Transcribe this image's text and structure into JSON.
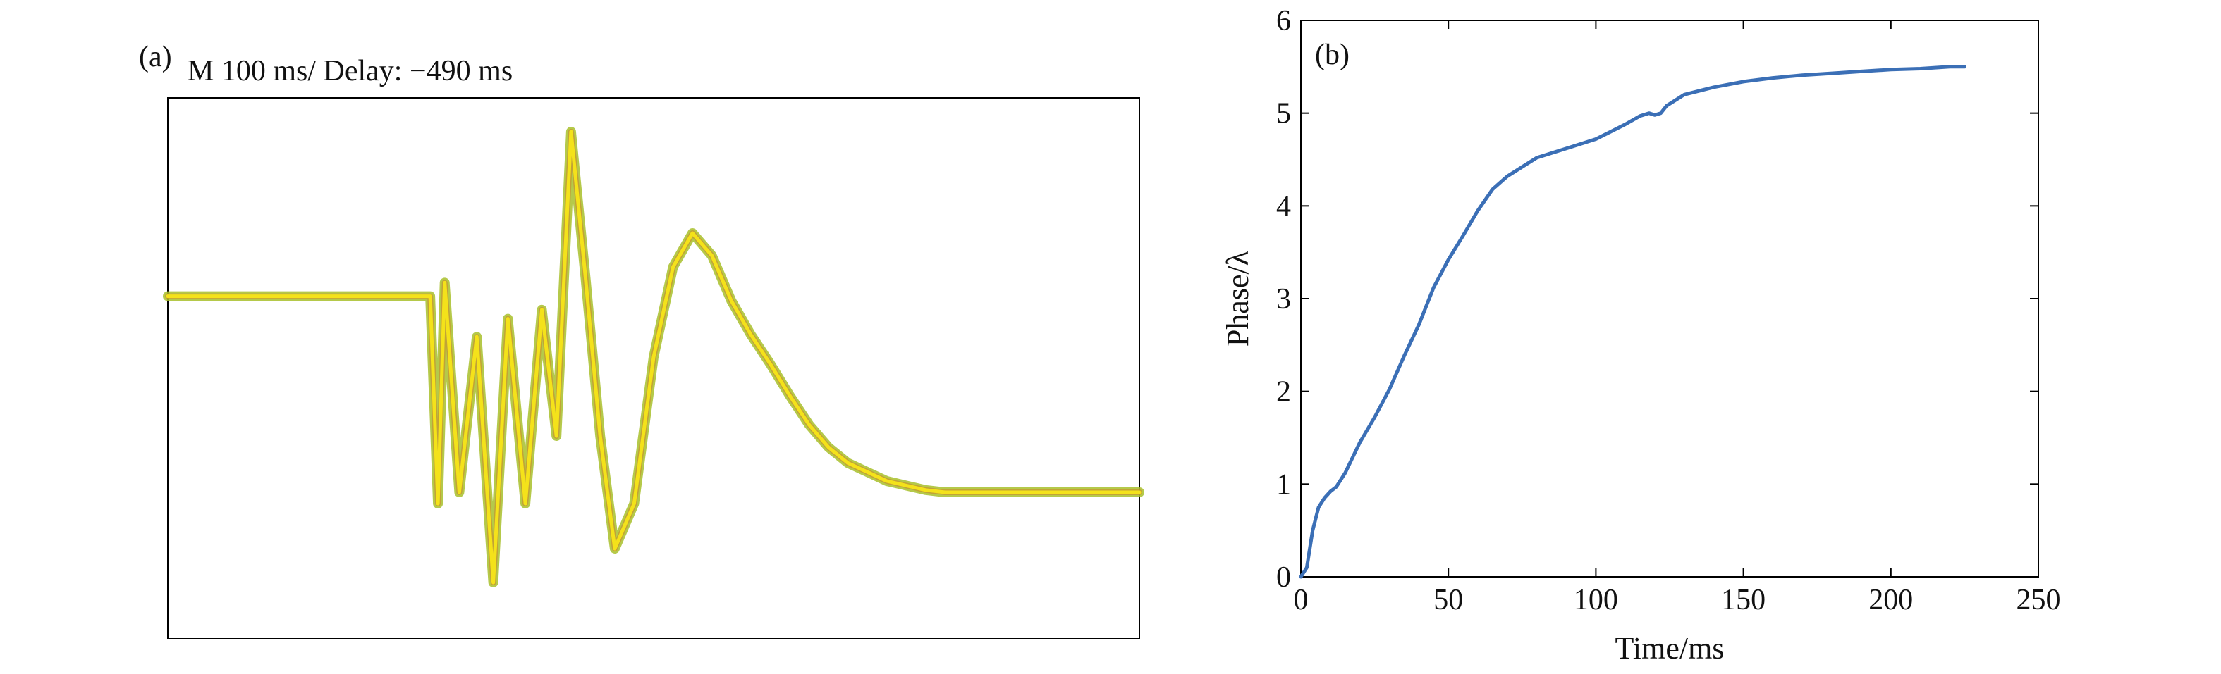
{
  "chart_data": [
    {
      "panel_label": "(a)",
      "type": "line",
      "title": "M 100 ms/ Delay: −490 ms",
      "xlabel": "",
      "ylabel": "",
      "grid": false,
      "axes_visible": false,
      "xlim": [
        0,
        1000
      ],
      "ylim": [
        -1.2,
        1.2
      ],
      "colors": {
        "trace_core": "#f4e21a",
        "trace_halo": "#a8bf2a",
        "trace_shadow": "#c98a2a",
        "frame": "#000000"
      },
      "series": [
        {
          "x": [
            0,
            60,
            120,
            180,
            240,
            270,
            278,
            285,
            300,
            318,
            335,
            350,
            368,
            385,
            400,
            415,
            430,
            445,
            460,
            480,
            500,
            520,
            540,
            560,
            580,
            600,
            620,
            640,
            660,
            680,
            700,
            720,
            740,
            760,
            780,
            800,
            850,
            900,
            950,
            1000
          ],
          "y": [
            0.32,
            0.32,
            0.32,
            0.32,
            0.32,
            0.32,
            -0.6,
            0.38,
            -0.55,
            0.14,
            -0.95,
            0.22,
            -0.6,
            0.26,
            -0.3,
            1.05,
            0.4,
            -0.3,
            -0.8,
            -0.6,
            0.05,
            0.45,
            0.6,
            0.5,
            0.3,
            0.15,
            0.02,
            -0.12,
            -0.25,
            -0.35,
            -0.42,
            -0.46,
            -0.5,
            -0.52,
            -0.54,
            -0.55,
            -0.55,
            -0.55,
            -0.55,
            -0.55
          ]
        }
      ]
    },
    {
      "panel_label": "(b)",
      "type": "line",
      "title": "",
      "xlabel": "Time/ms",
      "ylabel": "Phase/λ",
      "grid": false,
      "xlim": [
        0,
        250
      ],
      "ylim": [
        0,
        6
      ],
      "xticks": [
        "0",
        "50",
        "100",
        "150",
        "200",
        "250"
      ],
      "yticks": [
        "0",
        "1",
        "2",
        "3",
        "4",
        "5",
        "6"
      ],
      "colors": {
        "line": "#3b6fb6",
        "axes": "#000000"
      },
      "series": [
        {
          "x": [
            0,
            2,
            4,
            6,
            8,
            10,
            12,
            15,
            20,
            25,
            30,
            35,
            40,
            45,
            50,
            55,
            60,
            65,
            70,
            75,
            80,
            90,
            100,
            110,
            115,
            118,
            120,
            122,
            124,
            130,
            140,
            150,
            160,
            170,
            180,
            190,
            200,
            210,
            215,
            220,
            225
          ],
          "y": [
            0,
            0.1,
            0.5,
            0.75,
            0.85,
            0.92,
            0.97,
            1.12,
            1.45,
            1.72,
            2.02,
            2.38,
            2.72,
            3.12,
            3.42,
            3.68,
            3.95,
            4.18,
            4.32,
            4.42,
            4.52,
            4.62,
            4.72,
            4.88,
            4.97,
            5.0,
            4.98,
            5.0,
            5.08,
            5.2,
            5.28,
            5.34,
            5.38,
            5.41,
            5.43,
            5.45,
            5.47,
            5.48,
            5.49,
            5.5,
            5.5
          ]
        }
      ]
    }
  ]
}
